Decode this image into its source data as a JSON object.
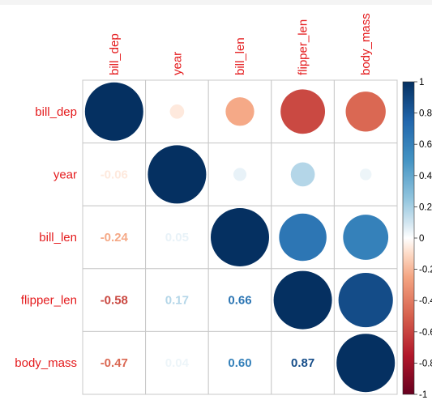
{
  "chart_data": {
    "type": "heatmap",
    "subtype": "correlation-matrix (mixed: upper circles, lower numbers)",
    "variables": [
      "bill_dep",
      "year",
      "bill_len",
      "flipper_len",
      "body_mass"
    ],
    "matrix": [
      [
        1.0,
        -0.06,
        -0.24,
        -0.58,
        -0.47
      ],
      [
        -0.06,
        1.0,
        0.05,
        0.17,
        0.04
      ],
      [
        -0.24,
        0.05,
        1.0,
        0.66,
        0.6
      ],
      [
        -0.58,
        0.17,
        0.66,
        1.0,
        0.87
      ],
      [
        -0.47,
        0.04,
        0.6,
        0.87,
        1.0
      ]
    ],
    "lower_labels": [
      [
        null,
        null,
        null,
        null,
        null
      ],
      [
        "-0.06",
        null,
        null,
        null,
        null
      ],
      [
        "-0.24",
        "0.05",
        null,
        null,
        null
      ],
      [
        "-0.58",
        "0.17",
        "0.66",
        null,
        null
      ],
      [
        "-0.47",
        "0.04",
        "0.60",
        "0.87",
        null
      ]
    ],
    "colorbar": {
      "range": [
        -1,
        1
      ],
      "ticks": [
        1,
        0.8,
        0.6,
        0.4,
        0.2,
        0,
        -0.2,
        -0.4,
        -0.6,
        -0.8,
        -1
      ],
      "tick_labels": [
        "1",
        "0.8",
        "0.6",
        "0.4",
        "0.2",
        "0",
        "-0.2",
        "-0.4",
        "-0.6",
        "-0.8",
        "-1"
      ]
    },
    "label_color": "#e41a1c",
    "grid_color": "#c8c8c8",
    "grid": true,
    "title": "",
    "xlabel": "",
    "ylabel": ""
  }
}
